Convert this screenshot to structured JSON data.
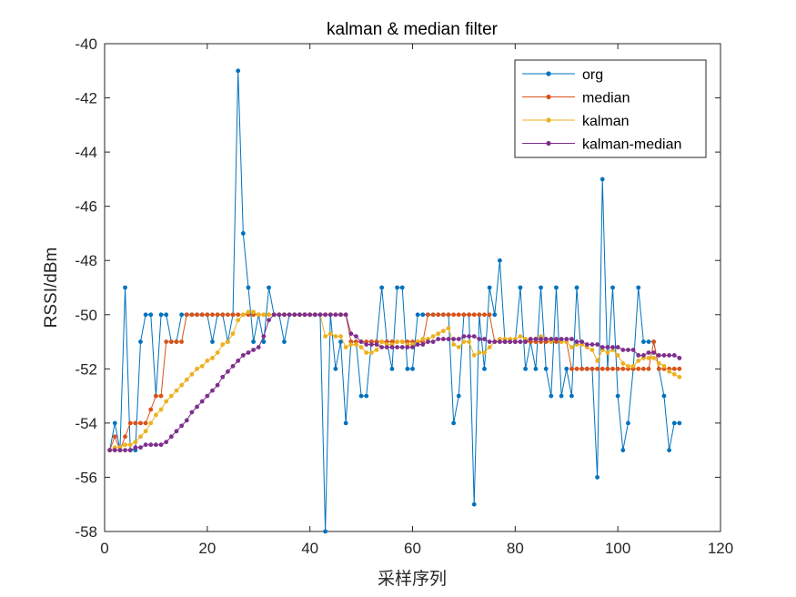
{
  "chart_data": {
    "type": "line",
    "title": "kalman & median filter",
    "xlabel": "采样序列",
    "ylabel": "RSSI/dBm",
    "xlim": [
      0,
      120
    ],
    "ylim": [
      -58,
      -40
    ],
    "xticks": [
      0,
      20,
      40,
      60,
      80,
      100,
      120
    ],
    "yticks": [
      -58,
      -56,
      -54,
      -52,
      -50,
      -48,
      -46,
      -44,
      -42,
      -40
    ],
    "grid": false,
    "legend_position": "top-right",
    "x": [
      1,
      2,
      3,
      4,
      5,
      6,
      7,
      8,
      9,
      10,
      11,
      12,
      13,
      14,
      15,
      16,
      17,
      18,
      19,
      20,
      21,
      22,
      23,
      24,
      25,
      26,
      27,
      28,
      29,
      30,
      31,
      32,
      33,
      34,
      35,
      36,
      37,
      38,
      39,
      40,
      41,
      42,
      43,
      44,
      45,
      46,
      47,
      48,
      49,
      50,
      51,
      52,
      53,
      54,
      55,
      56,
      57,
      58,
      59,
      60,
      61,
      62,
      63,
      64,
      65,
      66,
      67,
      68,
      69,
      70,
      71,
      72,
      73,
      74,
      75,
      76,
      77,
      78,
      79,
      80,
      81,
      82,
      83,
      84,
      85,
      86,
      87,
      88,
      89,
      90,
      91,
      92,
      93,
      94,
      95,
      96,
      97,
      98,
      99,
      100,
      101,
      102,
      103,
      104,
      105,
      106,
      107,
      108,
      109,
      110,
      111,
      112
    ],
    "series": [
      {
        "name": "org",
        "color": "#0072BD",
        "values": [
          -55,
          -54,
          -55,
          -49,
          -55,
          -55,
          -51,
          -50,
          -50,
          -53,
          -50,
          -50,
          -51,
          -51,
          -50,
          -50,
          -50,
          -50,
          -50,
          -50,
          -51,
          -50,
          -50,
          -51,
          -50,
          -41,
          -47,
          -49,
          -51,
          -50,
          -51,
          -49,
          -50,
          -50,
          -51,
          -50,
          -50,
          -50,
          -50,
          -50,
          -50,
          -50,
          -58,
          -50,
          -52,
          -51,
          -54,
          -51,
          -51,
          -53,
          -53,
          -51,
          -51,
          -49,
          -51,
          -52,
          -49,
          -49,
          -52,
          -52,
          -50,
          -50,
          -50,
          -50,
          -50,
          -50,
          -50,
          -54,
          -53,
          -50,
          -50,
          -57,
          -50,
          -52,
          -49,
          -50,
          -48,
          -51,
          -51,
          -51,
          -49,
          -52,
          -51,
          -52,
          -49,
          -52,
          -53,
          -49,
          -53,
          -52,
          -53,
          -49,
          -52,
          -52,
          -52,
          -56,
          -45,
          -52,
          -49,
          -53,
          -55,
          -54,
          -52,
          -49,
          -51,
          -51,
          -51,
          -52,
          -53,
          -55,
          -54,
          -54
        ]
      },
      {
        "name": "median",
        "color": "#D95319",
        "values": [
          -55,
          -54.5,
          -55,
          -54.5,
          -54,
          -54,
          -54,
          -54,
          -53.5,
          -53,
          -53,
          -51,
          -51,
          -51,
          -51,
          -50,
          -50,
          -50,
          -50,
          -50,
          -50,
          -50,
          -50,
          -50,
          -50,
          -50,
          -50,
          -50,
          -50,
          -50,
          -50,
          -50,
          -50,
          -50,
          -50,
          -50,
          -50,
          -50,
          -50,
          -50,
          -50,
          -50,
          -50,
          -50,
          -50,
          -50,
          -50,
          -51,
          -51,
          -51,
          -51,
          -51,
          -51,
          -51,
          -51,
          -51,
          -51,
          -51,
          -51,
          -51,
          -51,
          -51,
          -50,
          -50,
          -50,
          -50,
          -50,
          -50,
          -50,
          -50,
          -50,
          -50,
          -50,
          -50,
          -50,
          -51,
          -51,
          -51,
          -51,
          -51,
          -51,
          -51,
          -51,
          -51,
          -51,
          -51,
          -51,
          -51,
          -51,
          -51,
          -52,
          -52,
          -52,
          -52,
          -52,
          -52,
          -52,
          -52,
          -52,
          -52,
          -52,
          -52,
          -52,
          -52,
          -52,
          -52,
          -51,
          -52,
          -52,
          -52,
          -52,
          -52
        ]
      },
      {
        "name": "kalman",
        "color": "#EDB120",
        "values": [
          -55,
          -54.9,
          -54.9,
          -54.8,
          -54.8,
          -54.7,
          -54.5,
          -54.3,
          -54.0,
          -53.7,
          -53.5,
          -53.2,
          -53.0,
          -52.8,
          -52.6,
          -52.4,
          -52.2,
          -52.0,
          -51.9,
          -51.7,
          -51.6,
          -51.4,
          -51.1,
          -51.0,
          -50.7,
          -50.2,
          -50.0,
          -49.9,
          -49.9,
          -50.0,
          -50.0,
          -50.0,
          -50.0,
          -50.0,
          -50.0,
          -50.0,
          -50.0,
          -50.0,
          -50.0,
          -50.0,
          -50.0,
          -50.0,
          -50.8,
          -50.7,
          -50.8,
          -50.8,
          -51.2,
          -51.1,
          -51.1,
          -51.2,
          -51.4,
          -51.4,
          -51.3,
          -51.0,
          -51.1,
          -51.1,
          -51.0,
          -51.0,
          -51.1,
          -51.1,
          -51.0,
          -50.9,
          -50.9,
          -50.8,
          -50.7,
          -50.6,
          -50.5,
          -51.1,
          -51.2,
          -51.0,
          -51.0,
          -51.5,
          -51.4,
          -51.4,
          -51.2,
          -51.0,
          -50.9,
          -50.9,
          -50.9,
          -50.9,
          -50.8,
          -50.9,
          -50.9,
          -50.9,
          -50.8,
          -50.9,
          -51.0,
          -50.9,
          -51.0,
          -51.0,
          -51.2,
          -51.1,
          -51.1,
          -51.2,
          -51.3,
          -51.7,
          -51.3,
          -51.4,
          -51.3,
          -51.5,
          -51.8,
          -51.9,
          -51.9,
          -51.7,
          -51.6,
          -51.6,
          -51.6,
          -51.8,
          -51.9,
          -52.1,
          -52.2,
          -52.3
        ]
      },
      {
        "name": "kalman-median",
        "color": "#7E2F8E",
        "values": [
          -55,
          -55,
          -55,
          -55,
          -55,
          -54.9,
          -54.9,
          -54.8,
          -54.8,
          -54.8,
          -54.8,
          -54.7,
          -54.5,
          -54.3,
          -54.1,
          -53.9,
          -53.6,
          -53.4,
          -53.2,
          -53.0,
          -52.8,
          -52.6,
          -52.3,
          -52.1,
          -51.9,
          -51.7,
          -51.5,
          -51.4,
          -51.3,
          -51.2,
          -50.8,
          -50.2,
          -50.0,
          -50.0,
          -50.0,
          -50.0,
          -50.0,
          -50.0,
          -50.0,
          -50.0,
          -50.0,
          -50.0,
          -50.0,
          -50.0,
          -50.0,
          -50.0,
          -50.0,
          -50.7,
          -50.8,
          -51.0,
          -51.1,
          -51.1,
          -51.1,
          -51.2,
          -51.2,
          -51.2,
          -51.2,
          -51.2,
          -51.2,
          -51.2,
          -51.1,
          -51.1,
          -51.0,
          -51.0,
          -50.9,
          -50.9,
          -50.9,
          -50.9,
          -50.9,
          -50.8,
          -50.8,
          -50.8,
          -50.9,
          -50.9,
          -51.0,
          -51.0,
          -51.0,
          -51.0,
          -51.0,
          -51.0,
          -51.0,
          -51.0,
          -50.9,
          -50.9,
          -50.9,
          -50.9,
          -50.9,
          -50.9,
          -50.9,
          -50.9,
          -50.9,
          -51.0,
          -51.0,
          -51.1,
          -51.1,
          -51.1,
          -51.2,
          -51.2,
          -51.2,
          -51.2,
          -51.3,
          -51.3,
          -51.3,
          -51.5,
          -51.5,
          -51.4,
          -51.4,
          -51.5,
          -51.5,
          -51.5,
          -51.5,
          -51.6
        ]
      }
    ]
  }
}
